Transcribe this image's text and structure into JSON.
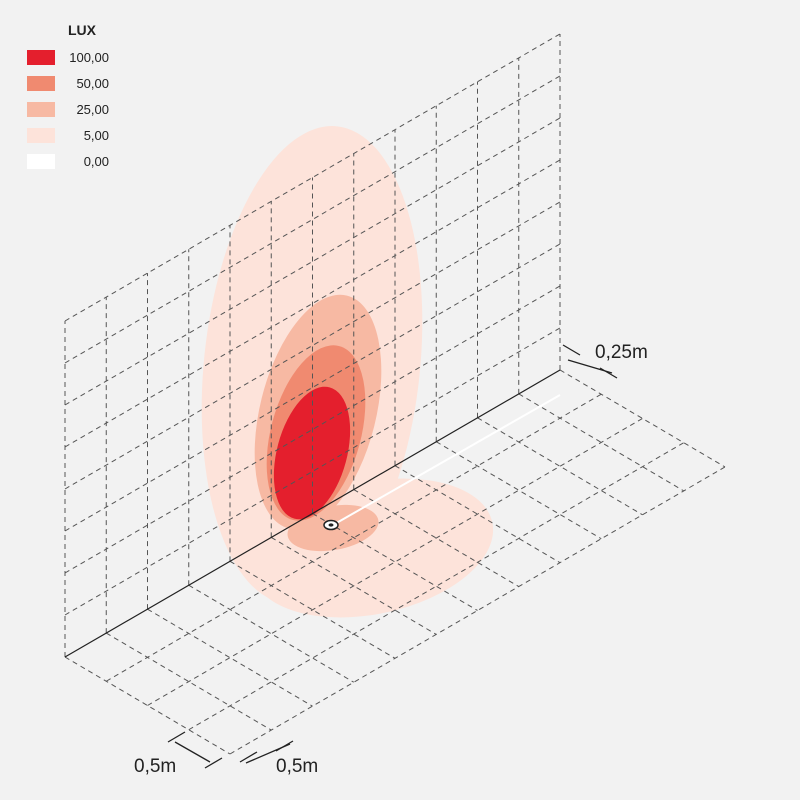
{
  "legend": {
    "title": "LUX",
    "items": [
      {
        "label": "100,00",
        "color": "#e41f2d"
      },
      {
        "label": "50,00",
        "color": "#f08a70"
      },
      {
        "label": "25,00",
        "color": "#f7b9a3"
      },
      {
        "label": "5,00",
        "color": "#fde3da"
      },
      {
        "label": "0,00",
        "color": "#ffffff"
      }
    ]
  },
  "dimensions": {
    "depth": "0,25m",
    "width": "0,5m",
    "floor": "0,5m"
  }
}
